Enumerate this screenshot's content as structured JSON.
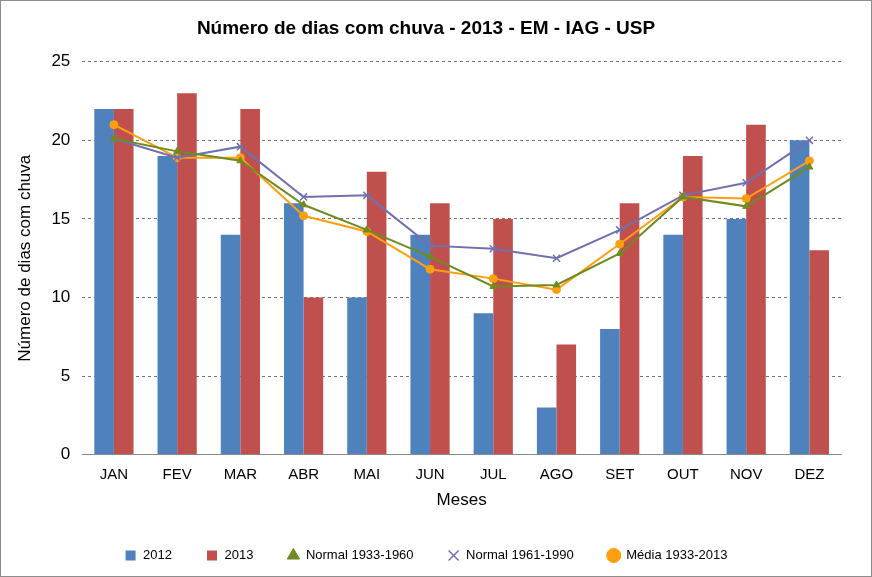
{
  "chart_data": {
    "type": "bar",
    "title": "Número de dias com chuva - 2013 - EM - IAG - USP",
    "x_label": "Meses",
    "y_label": "Número de dias com chuva",
    "categories": [
      "JAN",
      "FEV",
      "MAR",
      "ABR",
      "MAI",
      "JUN",
      "JUL",
      "AGO",
      "SET",
      "OUT",
      "NOV",
      "DEZ"
    ],
    "series": [
      {
        "name": "2012",
        "type": "bar",
        "color": "#4f81bd",
        "values": [
          22,
          19,
          14,
          16,
          10,
          14,
          9,
          3,
          8,
          14,
          15,
          20
        ]
      },
      {
        "name": "2013",
        "type": "bar",
        "color": "#c0504d",
        "values": [
          22,
          23,
          22,
          10,
          18,
          16,
          15,
          7,
          16,
          19,
          21,
          13
        ]
      },
      {
        "name": "Normal 1933-1960",
        "type": "line",
        "color": "#6f8a1f",
        "marker": "triangle",
        "line_style": "solid",
        "values": [
          20.1,
          19.3,
          18.7,
          15.9,
          14.3,
          12.6,
          10.7,
          10.8,
          12.8,
          16.4,
          15.8,
          18.3
        ]
      },
      {
        "name": "Normal 1961-1990",
        "type": "line",
        "color": "#7070b0",
        "marker": "x",
        "line_style": "solid",
        "values": [
          20.1,
          18.9,
          19.6,
          16.4,
          16.5,
          13.3,
          13.1,
          12.5,
          14.3,
          16.5,
          17.3,
          20.0
        ]
      },
      {
        "name": "Média 1933-2013",
        "type": "line",
        "color": "#ff9f10",
        "marker": "circle",
        "line_style": "solid",
        "values": [
          21.0,
          18.9,
          18.9,
          15.2,
          14.2,
          11.8,
          11.2,
          10.5,
          13.4,
          16.4,
          16.3,
          18.7
        ]
      }
    ],
    "ylim": [
      0,
      25
    ],
    "yticks": [
      0,
      5,
      10,
      15,
      20,
      25
    ],
    "grid": true,
    "legend": "bottom"
  }
}
